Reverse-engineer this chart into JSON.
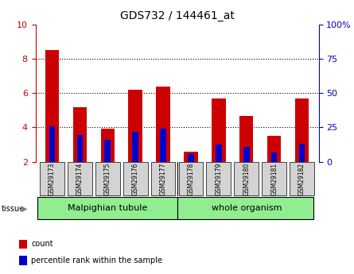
{
  "title": "GDS732 / 144461_at",
  "categories": [
    "GSM29173",
    "GSM29174",
    "GSM29175",
    "GSM29176",
    "GSM29177",
    "GSM29178",
    "GSM29179",
    "GSM29180",
    "GSM29181",
    "GSM29182"
  ],
  "red_values": [
    8.5,
    5.2,
    3.95,
    6.2,
    6.4,
    2.6,
    5.7,
    4.65,
    3.5,
    5.7
  ],
  "blue_values": [
    4.05,
    3.55,
    3.3,
    3.75,
    3.95,
    2.45,
    3.0,
    2.85,
    2.55,
    3.05
  ],
  "ylim_left": [
    2,
    10
  ],
  "ylim_right": [
    0,
    100
  ],
  "yticks_left": [
    2,
    4,
    6,
    8,
    10
  ],
  "yticks_right": [
    0,
    25,
    50,
    75,
    100
  ],
  "ytick_labels_right": [
    "0",
    "25",
    "50",
    "75",
    "100%"
  ],
  "left_color": "#cc0000",
  "right_color": "#0000cc",
  "bar_width": 0.5,
  "blue_bar_width": 0.22,
  "groups": [
    {
      "label": "Malpighian tubule",
      "start": 0,
      "end": 5,
      "color": "#90ee90"
    },
    {
      "label": "whole organism",
      "start": 5,
      "end": 10,
      "color": "#90ee90"
    }
  ],
  "tissue_label": "tissue",
  "legend_items": [
    {
      "color": "#cc0000",
      "label": "count"
    },
    {
      "color": "#0000cc",
      "label": "percentile rank within the sample"
    }
  ],
  "background_color": "#ffffff",
  "tick_label_bg": "#d3d3d3"
}
